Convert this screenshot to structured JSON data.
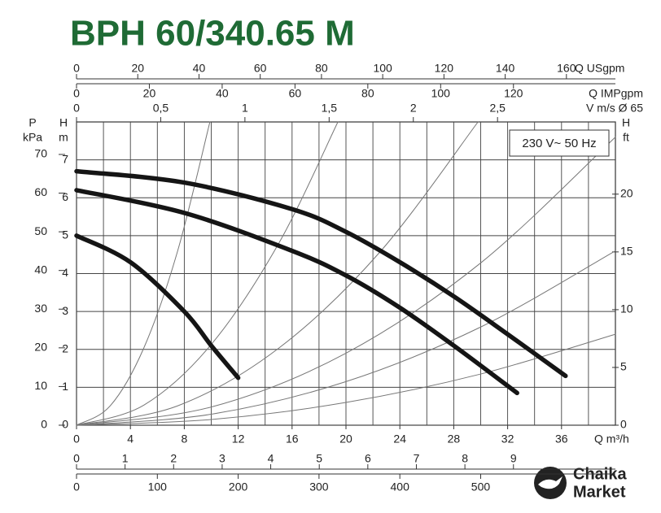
{
  "chart_data": {
    "type": "line",
    "title": "BPH 60/340.65 M",
    "x_label": "Q m³/h",
    "xlim": [
      0,
      40
    ],
    "xticks": [
      0,
      4,
      8,
      12,
      16,
      20,
      24,
      28,
      32,
      36
    ],
    "x_grid": [
      0,
      2,
      4,
      6,
      8,
      10,
      12,
      14,
      16,
      18,
      20,
      22,
      24,
      26,
      28,
      30,
      32,
      34,
      36,
      38
    ],
    "y_label": "H",
    "y_unit": "m",
    "ylim": [
      0,
      8
    ],
    "yticks": [
      0,
      1,
      2,
      3,
      4,
      5,
      6,
      7
    ],
    "grid": true,
    "annotation": "230 V~ 50 Hz",
    "series": [
      {
        "color": "#151515",
        "x": [
          0,
          4,
          8,
          10,
          12
        ],
        "values": [
          5.0,
          4.3,
          3.0,
          2.1,
          1.25
        ]
      },
      {
        "color": "#151515",
        "x": [
          0,
          8,
          16,
          20,
          24,
          28,
          32.7
        ],
        "values": [
          6.2,
          5.6,
          4.6,
          3.95,
          3.1,
          2.1,
          0.85
        ]
      },
      {
        "color": "#151515",
        "x": [
          0,
          8,
          16,
          20,
          24,
          28,
          32,
          36.3
        ],
        "values": [
          6.7,
          6.4,
          5.7,
          5.1,
          4.3,
          3.4,
          2.4,
          1.3
        ]
      }
    ],
    "system_curves": [
      {
        "color": "#777777",
        "x": [
          0,
          2.5,
          5,
          7.5,
          9.9
        ],
        "values": [
          0,
          0.51,
          2.04,
          4.59,
          8.0
        ]
      },
      {
        "color": "#777777",
        "x": [
          0,
          5,
          10,
          15,
          19.4
        ],
        "values": [
          0,
          0.53,
          2.13,
          4.79,
          8.0
        ]
      },
      {
        "color": "#777777",
        "x": [
          0,
          7.5,
          15,
          22.5,
          29.8
        ],
        "values": [
          0,
          0.51,
          2.03,
          4.56,
          8.0
        ]
      },
      {
        "color": "#777777",
        "x": [
          0,
          10,
          20,
          30,
          40
        ],
        "values": [
          0,
          0.48,
          1.9,
          4.28,
          7.6
        ]
      },
      {
        "color": "#777777",
        "x": [
          0,
          10,
          20,
          30,
          40
        ],
        "values": [
          0,
          0.29,
          1.15,
          2.59,
          4.6
        ]
      },
      {
        "color": "#777777",
        "x": [
          0,
          10,
          20,
          30,
          40
        ],
        "values": [
          0,
          0.15,
          0.6,
          1.35,
          2.4
        ]
      }
    ],
    "x_axes": [
      {
        "label": "Q USgpm",
        "lim": [
          0,
          176
        ],
        "ticks": [
          0,
          20,
          40,
          60,
          80,
          100,
          120,
          140,
          160
        ]
      },
      {
        "label": "Q IMPgpm",
        "lim": [
          0,
          148
        ],
        "ticks": [
          0,
          20,
          40,
          60,
          80,
          100,
          120
        ]
      },
      {
        "label": "V m/s Ø 65",
        "lim": [
          0,
          3.2
        ],
        "ticks": [
          0,
          {
            "value": 0.5,
            "label": "0,5"
          },
          1,
          {
            "value": 1.5,
            "label": "1,5"
          },
          2,
          {
            "value": 2.5,
            "label": "2,5"
          }
        ]
      },
      {
        "lim": [
          0,
          11.1
        ],
        "ticks": [
          0,
          1,
          2,
          3,
          4,
          5,
          6,
          7,
          8,
          9
        ]
      },
      {
        "lim": [
          0,
          666.7
        ],
        "ticks": [
          0,
          100,
          200,
          300,
          400,
          500
        ]
      }
    ],
    "y_axes": [
      {
        "label": "P",
        "unit": "kPa",
        "lim": [
          0,
          78.4
        ],
        "ticks": [
          0,
          10,
          20,
          30,
          40,
          50,
          60,
          70
        ]
      },
      {
        "label": "H",
        "unit": "ft",
        "lim": [
          0,
          26.25
        ],
        "ticks": [
          0,
          5,
          10,
          15,
          20
        ]
      }
    ]
  },
  "logo": {
    "line1": "Chaika",
    "line2": "Market"
  }
}
